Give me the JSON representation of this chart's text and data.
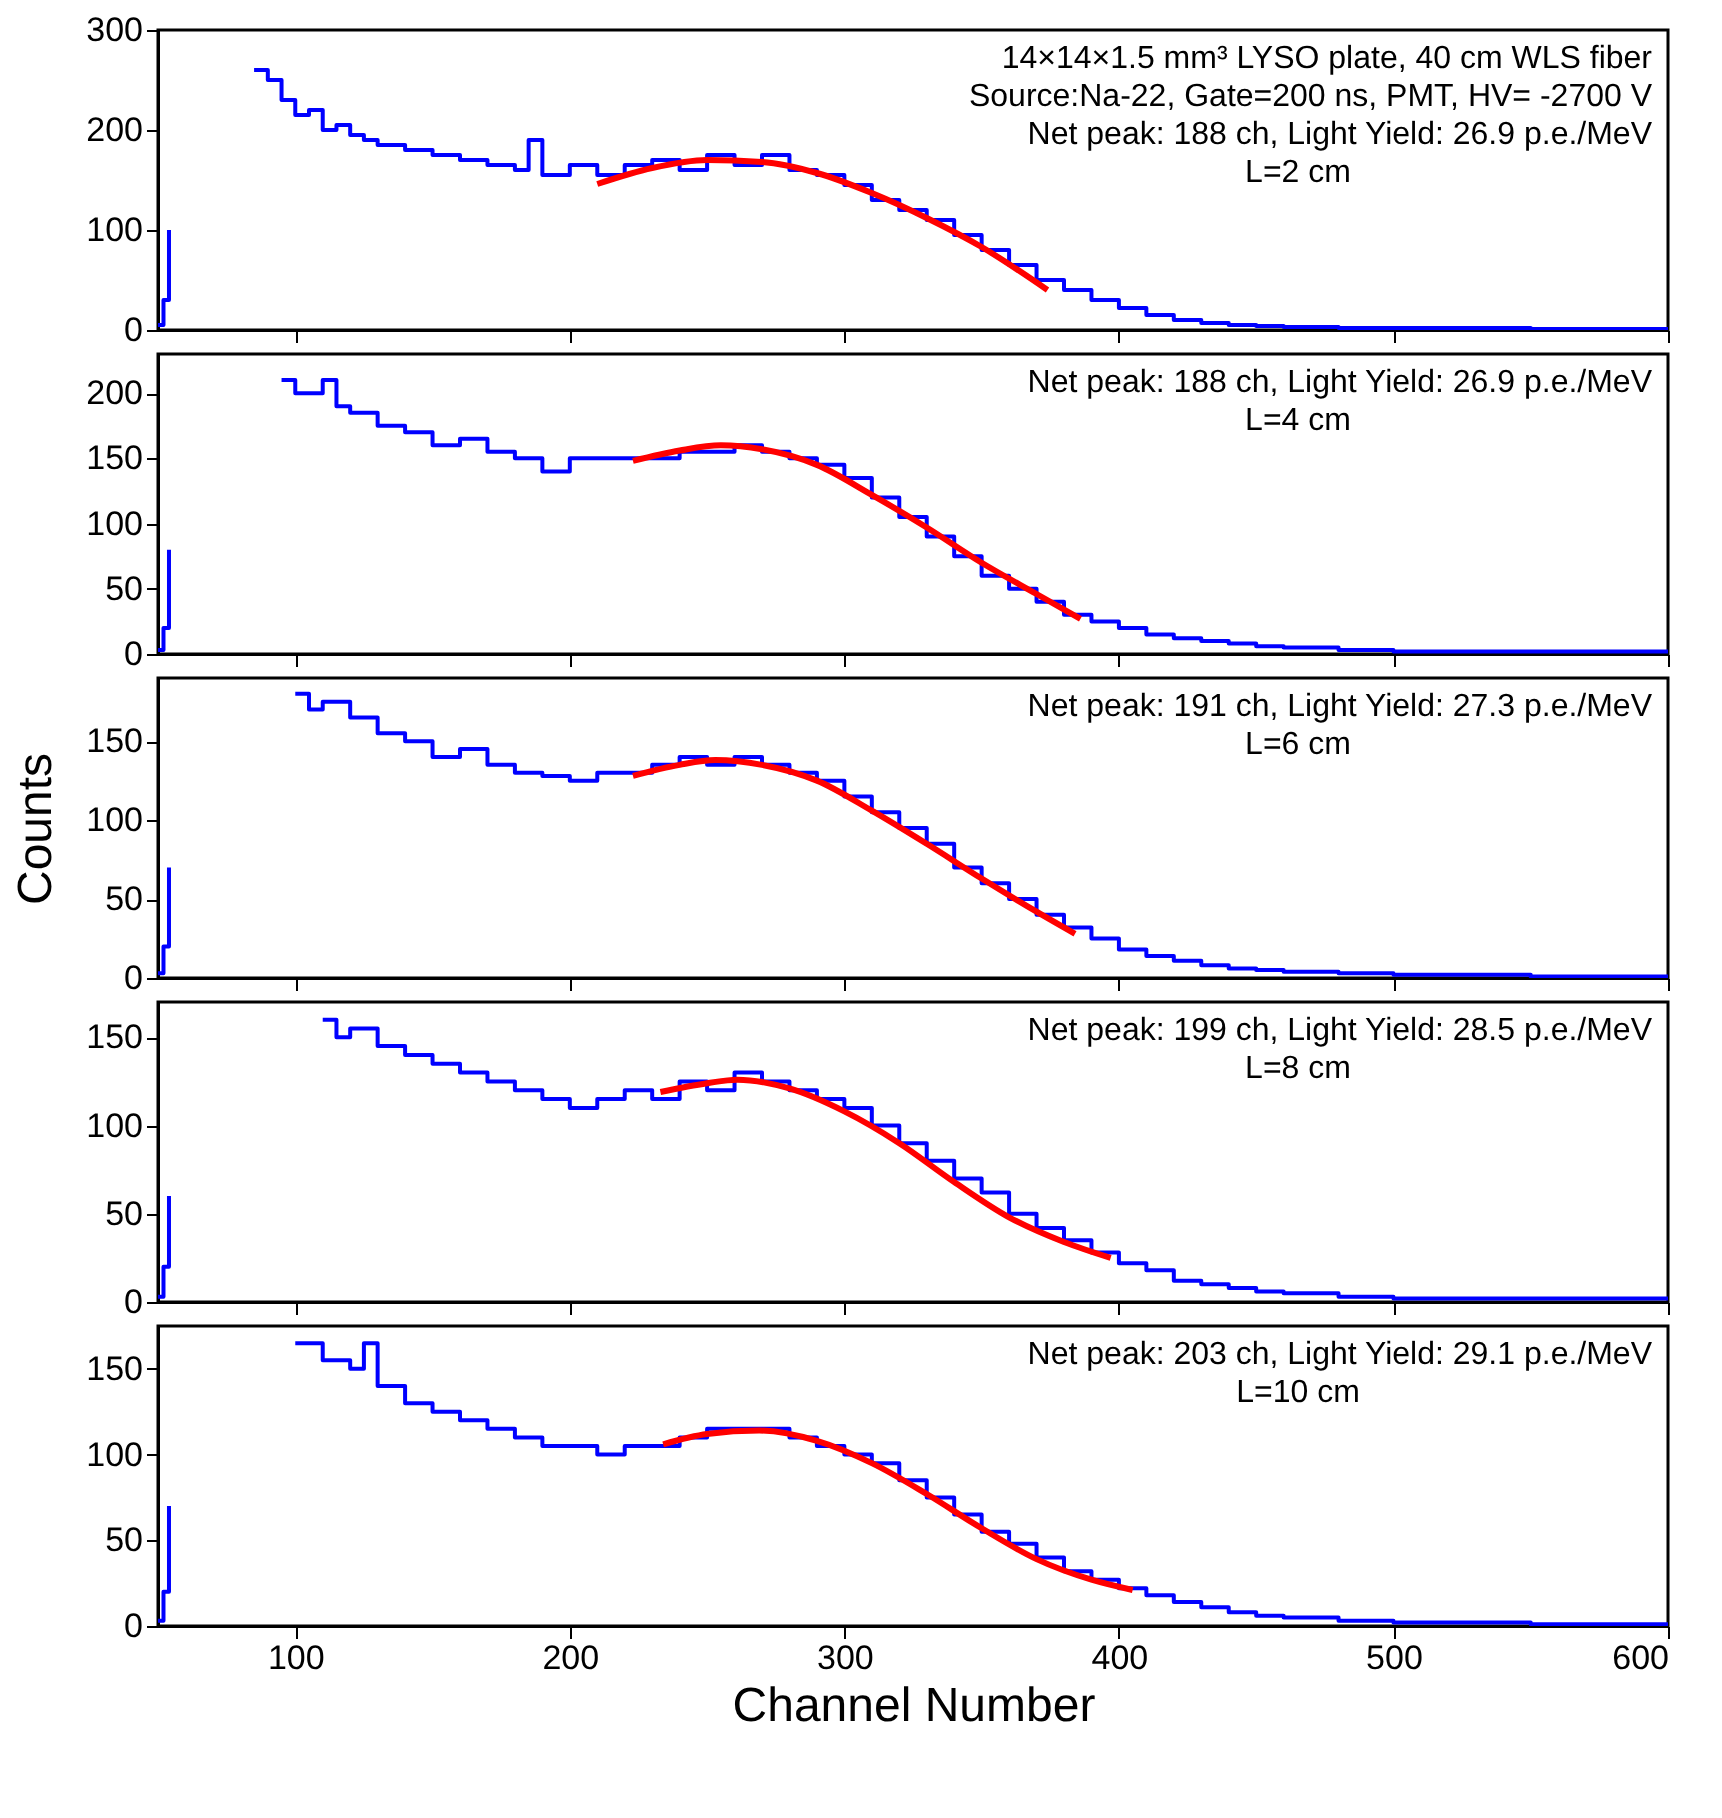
{
  "chart_data": [
    {
      "type": "step",
      "xlim": [
        50,
        600
      ],
      "xticks": [
        100,
        200,
        300,
        400,
        500,
        600
      ],
      "ylim": [
        0,
        300
      ],
      "yticks": [
        0,
        100,
        200,
        300
      ],
      "tick_labels": "y",
      "annotations": [
        "14×14×1.5 mm³ LYSO plate,  40 cm WLS fiber",
        "Source:Na-22, Gate=200 ns, PMT, HV= -2700 V",
        "Net peak: 188 ch, Light Yield: 26.9 p.e./MeV",
        "L=2 cm"
      ],
      "series": [
        {
          "color": "#0000ff",
          "x": [
            50,
            52,
            54,
            55,
            60,
            70,
            80,
            85,
            90,
            95,
            100,
            105,
            110,
            115,
            120,
            125,
            130,
            140,
            150,
            160,
            170,
            180,
            185,
            190,
            200,
            210,
            220,
            230,
            240,
            250,
            260,
            270,
            280,
            290,
            300,
            310,
            320,
            330,
            340,
            350,
            360,
            370,
            380,
            390,
            400,
            410,
            420,
            430,
            440,
            450,
            460,
            480,
            500,
            550,
            600
          ],
          "values": [
            5,
            30,
            100,
            null,
            null,
            null,
            null,
            260,
            250,
            230,
            215,
            220,
            200,
            205,
            195,
            190,
            185,
            180,
            175,
            170,
            165,
            160,
            190,
            155,
            165,
            155,
            165,
            170,
            160,
            175,
            165,
            175,
            160,
            155,
            145,
            130,
            120,
            110,
            95,
            80,
            65,
            50,
            40,
            30,
            22,
            15,
            10,
            7,
            5,
            4,
            3,
            2,
            2,
            1,
            1
          ]
        },
        {
          "type": "line",
          "color": "#ff0000",
          "x": [
            210,
            230,
            250,
            270,
            290,
            310,
            330,
            350,
            374
          ],
          "values": [
            146,
            162,
            170,
            168,
            157,
            137,
            112,
            83,
            40
          ]
        }
      ]
    },
    {
      "type": "step",
      "xlim": [
        50,
        600
      ],
      "xticks": [
        100,
        200,
        300,
        400,
        500,
        600
      ],
      "ylim": [
        0,
        230
      ],
      "yticks": [
        0,
        50,
        100,
        150,
        200
      ],
      "tick_labels": "y",
      "annotations": [
        "Net peak: 188 ch, Light Yield: 26.9 p.e./MeV",
        "L=4 cm"
      ],
      "series": [
        {
          "color": "#0000ff",
          "x": [
            50,
            52,
            54,
            55,
            60,
            70,
            80,
            90,
            95,
            100,
            110,
            115,
            120,
            130,
            140,
            150,
            160,
            170,
            180,
            190,
            200,
            210,
            220,
            230,
            240,
            250,
            260,
            270,
            280,
            290,
            300,
            310,
            320,
            330,
            340,
            350,
            360,
            370,
            380,
            390,
            400,
            410,
            420,
            430,
            440,
            450,
            460,
            480,
            500,
            550,
            600
          ],
          "values": [
            3,
            20,
            80,
            null,
            null,
            null,
            null,
            null,
            210,
            200,
            210,
            190,
            185,
            175,
            170,
            160,
            165,
            155,
            150,
            140,
            150,
            150,
            150,
            150,
            155,
            155,
            160,
            155,
            150,
            145,
            135,
            120,
            105,
            90,
            75,
            60,
            50,
            40,
            30,
            25,
            20,
            15,
            12,
            10,
            8,
            6,
            5,
            3,
            2,
            2,
            1
          ]
        },
        {
          "type": "line",
          "color": "#ff0000",
          "x": [
            223,
            240,
            255,
            270,
            290,
            310,
            330,
            350,
            370,
            386
          ],
          "values": [
            148,
            156,
            160,
            157,
            145,
            122,
            97,
            70,
            46,
            27
          ]
        }
      ]
    },
    {
      "type": "step",
      "xlim": [
        50,
        600
      ],
      "xticks": [
        100,
        200,
        300,
        400,
        500,
        600
      ],
      "ylim": [
        0,
        190
      ],
      "yticks": [
        0,
        50,
        100,
        150
      ],
      "tick_labels": "y",
      "ylabel": "Counts",
      "annotations": [
        "Net peak: 191 ch, Light Yield: 27.3 p.e./MeV",
        "L=6 cm"
      ],
      "series": [
        {
          "color": "#0000ff",
          "x": [
            50,
            52,
            54,
            55,
            60,
            70,
            80,
            90,
            100,
            105,
            110,
            120,
            130,
            140,
            150,
            160,
            170,
            180,
            190,
            200,
            210,
            220,
            230,
            240,
            250,
            260,
            270,
            280,
            290,
            300,
            310,
            320,
            330,
            340,
            350,
            360,
            370,
            380,
            390,
            400,
            410,
            420,
            430,
            440,
            450,
            460,
            480,
            500,
            550,
            600
          ],
          "values": [
            3,
            20,
            70,
            null,
            null,
            null,
            null,
            null,
            180,
            170,
            175,
            165,
            155,
            150,
            140,
            145,
            135,
            130,
            128,
            125,
            130,
            130,
            135,
            140,
            135,
            140,
            135,
            130,
            125,
            115,
            105,
            95,
            85,
            70,
            60,
            50,
            40,
            32,
            25,
            18,
            14,
            11,
            8,
            6,
            5,
            4,
            3,
            2,
            1,
            1
          ]
        },
        {
          "type": "line",
          "color": "#ff0000",
          "x": [
            223,
            240,
            253,
            270,
            290,
            310,
            330,
            350,
            370,
            384
          ],
          "values": [
            128,
            135,
            138,
            135,
            125,
            106,
            85,
            63,
            42,
            28
          ]
        }
      ]
    },
    {
      "type": "step",
      "xlim": [
        50,
        600
      ],
      "xticks": [
        100,
        200,
        300,
        400,
        500,
        600
      ],
      "ylim": [
        0,
        170
      ],
      "yticks": [
        0,
        50,
        100,
        150
      ],
      "tick_labels": "y",
      "annotations": [
        "Net peak: 199 ch, Light Yield: 28.5 p.e./MeV",
        "L=8 cm"
      ],
      "series": [
        {
          "color": "#0000ff",
          "x": [
            50,
            52,
            54,
            55,
            60,
            70,
            80,
            90,
            100,
            110,
            115,
            120,
            130,
            140,
            150,
            160,
            170,
            180,
            190,
            200,
            210,
            220,
            230,
            240,
            250,
            260,
            270,
            280,
            290,
            300,
            310,
            320,
            330,
            340,
            350,
            360,
            370,
            380,
            390,
            400,
            410,
            420,
            430,
            440,
            450,
            460,
            480,
            500,
            550,
            600
          ],
          "values": [
            3,
            20,
            60,
            null,
            null,
            null,
            null,
            null,
            null,
            160,
            150,
            155,
            145,
            140,
            135,
            130,
            125,
            120,
            115,
            110,
            115,
            120,
            115,
            125,
            120,
            130,
            125,
            120,
            115,
            110,
            100,
            90,
            80,
            70,
            62,
            50,
            42,
            35,
            28,
            22,
            18,
            12,
            10,
            8,
            6,
            5,
            3,
            2,
            2,
            1
          ]
        },
        {
          "type": "line",
          "color": "#ff0000",
          "x": [
            233,
            250,
            261,
            280,
            300,
            320,
            340,
            360,
            380,
            397
          ],
          "values": [
            119,
            124,
            126,
            121,
            108,
            90,
            68,
            48,
            34,
            25
          ]
        }
      ]
    },
    {
      "type": "step",
      "xlim": [
        50,
        600
      ],
      "xticks": [
        100,
        200,
        300,
        400,
        500,
        600
      ],
      "ylim": [
        0,
        175
      ],
      "yticks": [
        0,
        50,
        100,
        150
      ],
      "xlabel": "Channel Number",
      "annotations": [
        "Net peak: 203 ch, Light Yield: 29.1 p.e./MeV",
        "L=10 cm"
      ],
      "series": [
        {
          "color": "#0000ff",
          "x": [
            50,
            52,
            54,
            55,
            60,
            70,
            80,
            90,
            100,
            110,
            120,
            125,
            130,
            140,
            150,
            160,
            170,
            180,
            190,
            200,
            210,
            220,
            230,
            240,
            250,
            260,
            270,
            280,
            290,
            300,
            310,
            320,
            330,
            340,
            350,
            360,
            370,
            380,
            390,
            400,
            410,
            420,
            430,
            440,
            450,
            460,
            480,
            500,
            550,
            600
          ],
          "values": [
            3,
            20,
            70,
            null,
            null,
            null,
            null,
            null,
            165,
            155,
            150,
            165,
            140,
            130,
            125,
            120,
            115,
            110,
            105,
            105,
            100,
            105,
            105,
            110,
            115,
            115,
            115,
            110,
            105,
            100,
            95,
            85,
            75,
            65,
            55,
            48,
            40,
            32,
            27,
            22,
            18,
            14,
            11,
            8,
            6,
            5,
            3,
            2,
            1,
            1
          ]
        },
        {
          "type": "line",
          "color": "#ff0000",
          "x": [
            234,
            250,
            269,
            290,
            310,
            330,
            350,
            370,
            390,
            405
          ],
          "values": [
            106,
            112,
            114,
            108,
            95,
            77,
            57,
            39,
            27,
            21
          ]
        }
      ]
    }
  ]
}
